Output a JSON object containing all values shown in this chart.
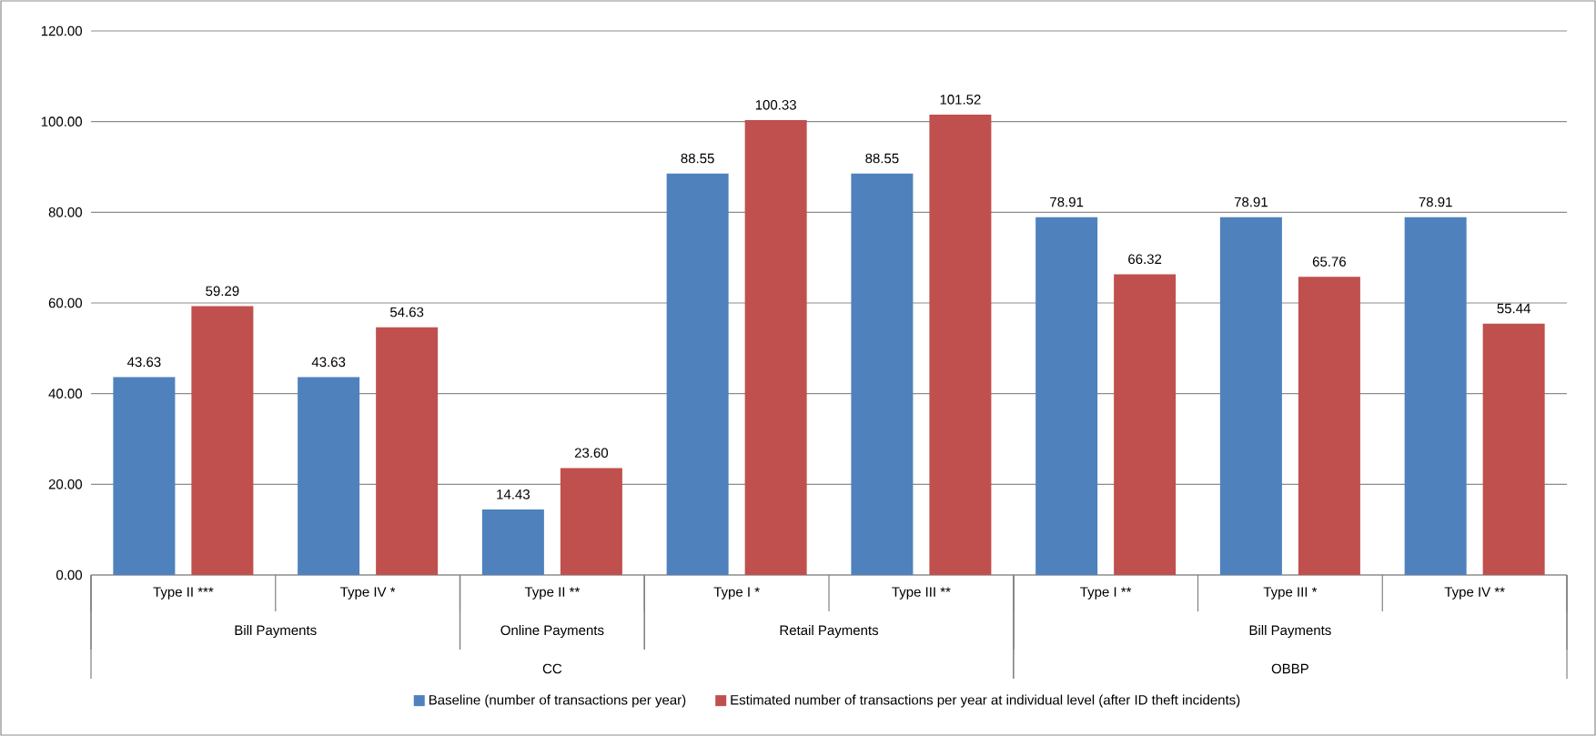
{
  "chart_data": {
    "type": "bar",
    "categories": [
      "Type II ***",
      "Type IV *",
      "Type II **",
      "Type I *",
      "Type III **",
      "Type I **",
      "Type III *",
      "Type IV **"
    ],
    "series": [
      {
        "name": "Baseline (number of transactions per year)",
        "color": "#4f81bd",
        "values": [
          43.63,
          43.63,
          14.43,
          88.55,
          88.55,
          78.91,
          78.91,
          78.91
        ],
        "value_labels": [
          "43.63",
          "43.63",
          "14.43",
          "88.55",
          "88.55",
          "78.91",
          "78.91",
          "78.91"
        ]
      },
      {
        "name": "Estimated number of transactions per year at individual level (after ID theft incidents)",
        "color": "#c0504d",
        "values": [
          59.29,
          54.63,
          23.6,
          100.33,
          101.52,
          66.32,
          65.76,
          55.44
        ],
        "value_labels": [
          "59.29",
          "54.63",
          "23.60",
          "100.33",
          "101.52",
          "66.32",
          "65.76",
          "55.44"
        ]
      }
    ],
    "ylim": [
      0,
      120
    ],
    "yticks": [
      {
        "value": 0,
        "label": "0.00"
      },
      {
        "value": 20,
        "label": "20.00"
      },
      {
        "value": 40,
        "label": "40.00"
      },
      {
        "value": 60,
        "label": "60.00"
      },
      {
        "value": 80,
        "label": "80.00"
      },
      {
        "value": 100,
        "label": "100.00"
      },
      {
        "value": 120,
        "label": "120.00"
      }
    ],
    "grid": "y",
    "legend": "bottom",
    "annotations": [
      "Bill Payments",
      "Online Payments",
      "Retail Payments",
      "Bill Payments",
      "CC",
      "OBBP"
    ]
  }
}
